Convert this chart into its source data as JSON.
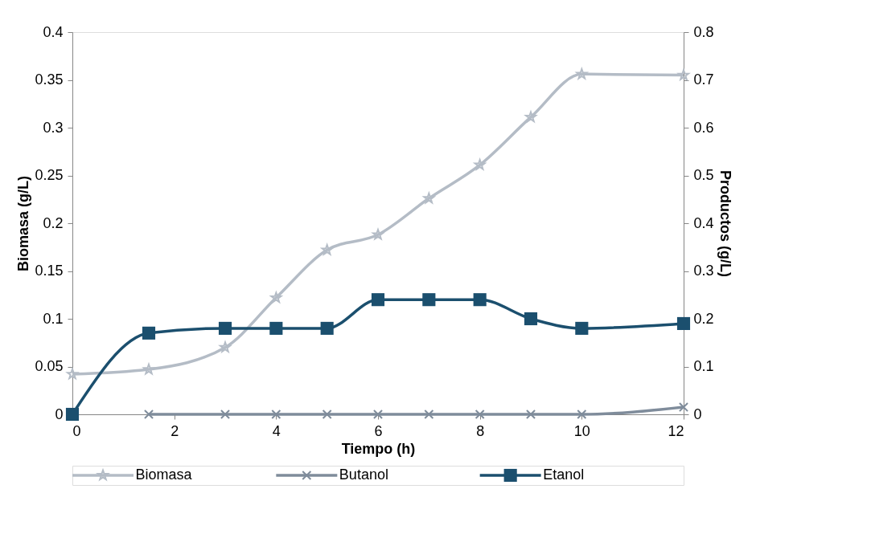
{
  "chart_data": {
    "type": "line",
    "xlabel": "Tiempo (h)",
    "ylabel": "Biomasa (g/L)",
    "y2label": "Productos (g/L)",
    "x": [
      0,
      1.5,
      3,
      4,
      5,
      6,
      7,
      8,
      9,
      10,
      12
    ],
    "series": [
      {
        "name": "Biomasa",
        "color": "#b4bcc6",
        "marker": "star",
        "values": [
          0.042,
          0.047,
          0.07,
          0.122,
          0.172,
          0.188,
          0.226,
          0.261,
          0.311,
          0.356,
          0.355
        ]
      },
      {
        "name": "Butanol",
        "color": "#7f8c9b",
        "marker": "cross",
        "axis": "y2",
        "values": [
          null,
          0,
          0,
          0,
          0,
          0,
          0,
          0,
          0,
          0,
          0.015
        ]
      },
      {
        "name": "Etanol",
        "color": "#1b4f6e",
        "marker": "square",
        "axis": "y2",
        "values": [
          0,
          0.17,
          0.18,
          0.18,
          0.18,
          0.24,
          0.24,
          0.24,
          0.2,
          0.18,
          0.19
        ]
      }
    ],
    "xlim": [
      0,
      12
    ],
    "xticks": [
      0,
      2,
      4,
      6,
      8,
      10,
      12
    ],
    "ylim": [
      0,
      0.4
    ],
    "yticks": [
      0,
      0.05,
      0.1,
      0.15,
      0.2,
      0.25,
      0.3,
      0.35,
      0.4
    ],
    "y2lim": [
      0,
      0.8
    ],
    "y2ticks": [
      0,
      0.1,
      0.2,
      0.3,
      0.4,
      0.5,
      0.6,
      0.7,
      0.8
    ],
    "grid": false,
    "legend": "bottom"
  }
}
